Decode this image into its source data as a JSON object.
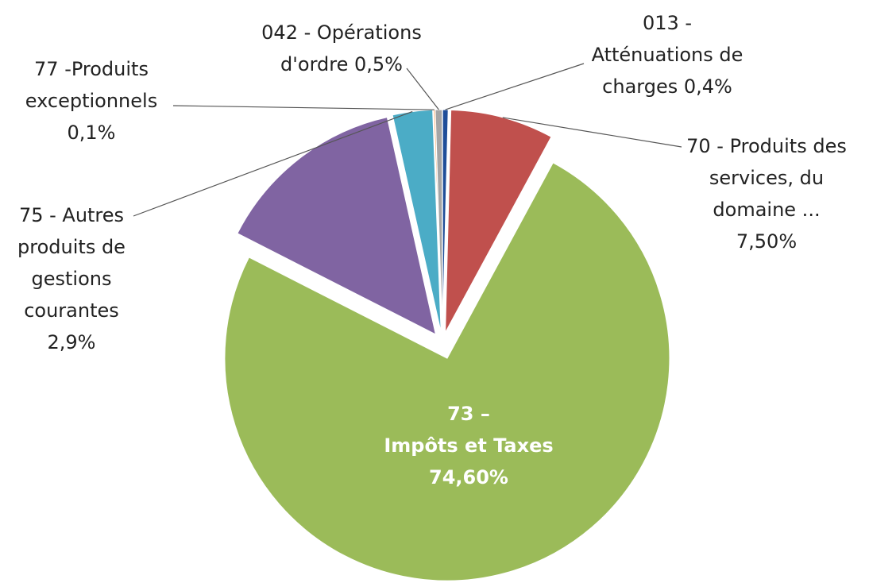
{
  "chart_data": {
    "type": "pie",
    "labels": [
      "013 -\nAtténuations de\ncharges 0,4%",
      "70 - Produits des\nservices, du\ndomaine ...\n7,50%",
      "73 –\nImpôts et Taxes\n74,60%",
      null,
      "75 - Autres\nproduits de\ngestions\ncourantes\n2,9%",
      "77 -Produits\nexceptionnels\n0,1%",
      "042 - Opérations\nd'ordre 0,5%"
    ],
    "values": [
      0.4,
      7.5,
      74.6,
      14,
      2.9,
      0.1,
      0.5
    ],
    "colors": [
      "#1f4e99",
      "#c0504d",
      "#9bbb59",
      "#8064a2",
      "#4bacc6",
      "#f79646",
      "#a5a5a5"
    ]
  }
}
